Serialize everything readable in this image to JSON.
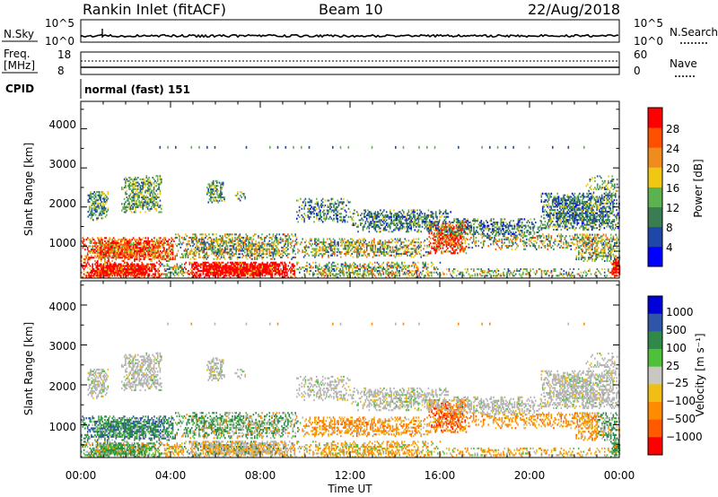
{
  "header": {
    "station": "Rankin Inlet (fitACF)",
    "beam": "Beam 10",
    "date": "22/Aug/2018"
  },
  "noise_panel": {
    "left_label": "N.Sky",
    "left_ticks": [
      "10^5",
      "10^0"
    ],
    "right_label": "N.Search",
    "right_ticks": [
      "10^5",
      "10^0"
    ]
  },
  "freq_panel": {
    "left_label_line1": "Freq.",
    "left_label_line2": "[MHz]",
    "left_ticks": [
      "18",
      "8"
    ],
    "right_label": "Nave",
    "right_ticks": [
      "60",
      "0"
    ]
  },
  "cpid": {
    "label": "CPID",
    "value": "normal (fast) 151"
  },
  "colors": {
    "power": [
      "#0000ff",
      "#1f47a8",
      "#3b7d52",
      "#5cb24e",
      "#f0c814",
      "#f08c1e",
      "#ff5000",
      "#ff0000"
    ],
    "velocity": [
      "#0000d8",
      "#2e55a8",
      "#2f8a4a",
      "#4fc039",
      "#c8c8c0",
      "#f0be14",
      "#ff8c00",
      "#ff5a00",
      "#ff0000"
    ],
    "ground": "#b4b4b4"
  },
  "chart_data": [
    {
      "type": "heatmap",
      "name": "power",
      "xlabel": "",
      "ylabel": "Slant Range [km]",
      "xlim": [
        0,
        24
      ],
      "ylim": [
        180,
        4500
      ],
      "yticks": [
        "1000",
        "2000",
        "3000",
        "4000"
      ],
      "colorbar": {
        "label": "Power [dB]",
        "ticks": [
          "4",
          "8",
          "12",
          "16",
          "20",
          "24",
          "28"
        ]
      }
    },
    {
      "type": "heatmap",
      "name": "velocity",
      "xlabel": "Time UT",
      "ylabel": "Slant Range [km]",
      "xlim": [
        0,
        24
      ],
      "ylim": [
        180,
        4500
      ],
      "xticks": [
        "00:00",
        "04:00",
        "08:00",
        "12:00",
        "16:00",
        "20:00",
        "00:00"
      ],
      "yticks": [
        "1000",
        "2000",
        "3000",
        "4000"
      ],
      "colorbar": {
        "label": "Velocity [m s⁻¹]",
        "ticks": [
          "1000",
          "500",
          "100",
          "25",
          "−25",
          "−100",
          "−500",
          "−1000"
        ]
      }
    }
  ]
}
